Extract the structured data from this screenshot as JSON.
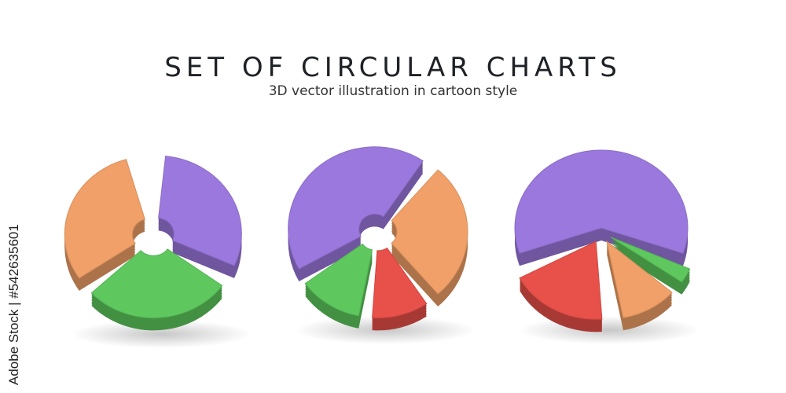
{
  "title": "SET OF CIRCULAR CHARTS",
  "subtitle": "3D vector illustration in cartoon style",
  "watermark": "Adobe Stock | #542635601",
  "colors": {
    "purple": "#9b78dd",
    "orange": "#f0a068",
    "green": "#5ec85e",
    "red": "#e8504a"
  },
  "charts": [
    {
      "kind": "donut",
      "slices": [
        {
          "color": "orange",
          "from": 235,
          "to": 345
        },
        {
          "color": "purple",
          "from": 5,
          "to": 115
        },
        {
          "color": "green",
          "from": 125,
          "to": 228
        }
      ]
    },
    {
      "kind": "donut",
      "slices": [
        {
          "color": "purple",
          "from": 240,
          "to": 395
        },
        {
          "color": "orange",
          "from": 40,
          "to": 140
        },
        {
          "color": "red",
          "from": 145,
          "to": 185
        },
        {
          "color": "green",
          "from": 190,
          "to": 235
        }
      ]
    },
    {
      "kind": "pie",
      "slices": [
        {
          "color": "purple",
          "from": 250,
          "to": 470
        },
        {
          "color": "green",
          "from": 113,
          "to": 126
        },
        {
          "color": "orange",
          "from": 130,
          "to": 170
        },
        {
          "color": "red",
          "from": 175,
          "to": 243
        }
      ]
    }
  ]
}
